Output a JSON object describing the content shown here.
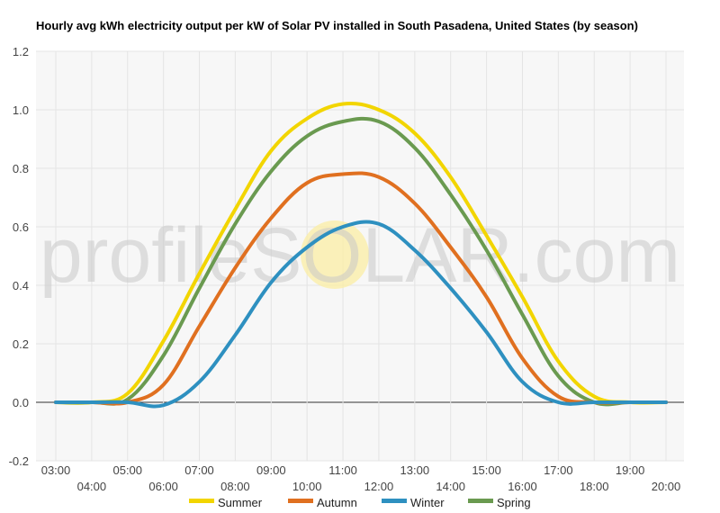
{
  "chart_data": {
    "type": "line",
    "title": "Hourly avg kWh electricity output per kW of Solar PV installed in South Pasadena, United States (by season)",
    "xlabel": "",
    "ylabel": "",
    "ylim": [
      -0.2,
      1.2
    ],
    "yticks": [
      "-0.2",
      "0.0",
      "0.2",
      "0.4",
      "0.6",
      "0.8",
      "1.0",
      "1.2"
    ],
    "x": [
      "03:00",
      "04:00",
      "05:00",
      "06:00",
      "07:00",
      "08:00",
      "09:00",
      "10:00",
      "11:00",
      "12:00",
      "13:00",
      "14:00",
      "15:00",
      "16:00",
      "17:00",
      "18:00",
      "19:00",
      "20:00"
    ],
    "grid": true,
    "legend": "bottom",
    "series": [
      {
        "name": "Summer",
        "color": "#f2d500",
        "values": [
          0,
          0,
          0.03,
          0.21,
          0.44,
          0.66,
          0.86,
          0.97,
          1.02,
          1.0,
          0.92,
          0.77,
          0.57,
          0.36,
          0.14,
          0.02,
          0,
          0
        ]
      },
      {
        "name": "Autumn",
        "color": "#e07020",
        "values": [
          0,
          0,
          0,
          0.06,
          0.26,
          0.46,
          0.63,
          0.75,
          0.78,
          0.77,
          0.68,
          0.53,
          0.36,
          0.15,
          0.02,
          0,
          0,
          0
        ]
      },
      {
        "name": "Winter",
        "color": "#2e90c0",
        "values": [
          0,
          0,
          0,
          -0.01,
          0.07,
          0.23,
          0.41,
          0.53,
          0.6,
          0.61,
          0.52,
          0.39,
          0.24,
          0.07,
          0,
          0,
          0,
          0
        ]
      },
      {
        "name": "Spring",
        "color": "#6a9a50",
        "values": [
          0,
          0,
          0.01,
          0.16,
          0.39,
          0.61,
          0.79,
          0.91,
          0.96,
          0.96,
          0.87,
          0.71,
          0.52,
          0.3,
          0.09,
          0,
          0,
          0
        ]
      }
    ]
  },
  "watermark": {
    "text": "profileSOLAR.com"
  },
  "colors": {
    "background": "#ffffff",
    "plot_background": "#f7f7f7",
    "grid": "#e4e4e4",
    "zero_line": "#333333",
    "watermark_sun": "#fbeea4"
  }
}
